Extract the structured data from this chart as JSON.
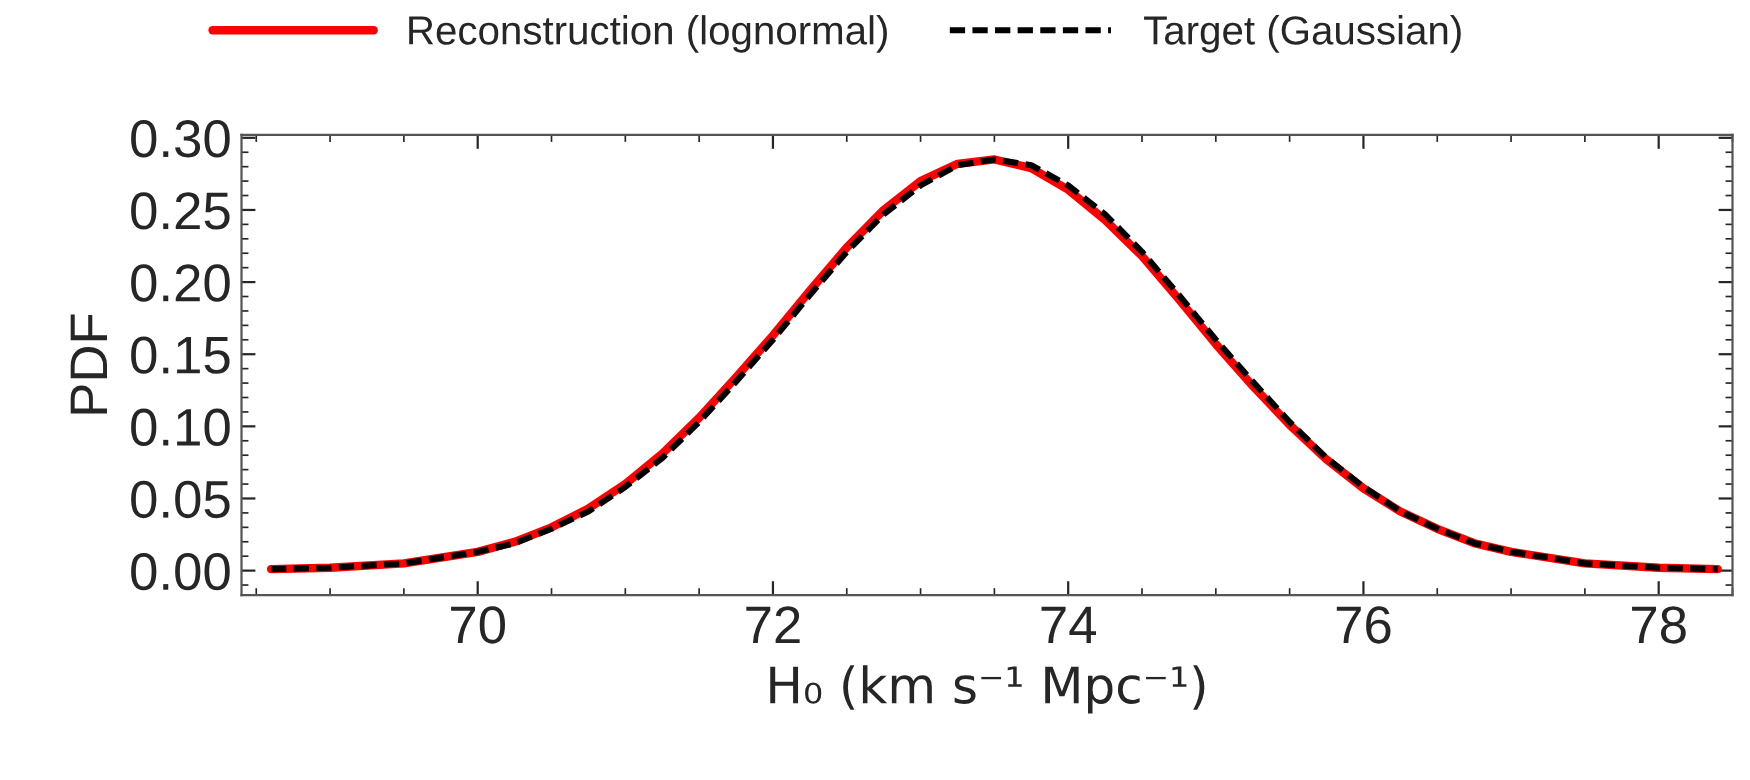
{
  "chart_data": {
    "type": "line",
    "xlabel": "H₀ (km s⁻¹ Mpc⁻¹)",
    "ylabel": "PDF",
    "xlim": [
      68.4,
      78.5
    ],
    "ylim": [
      -0.017,
      0.302
    ],
    "xticks": [
      70,
      72,
      74,
      76,
      78
    ],
    "yticks": [
      {
        "value": 0,
        "label": "0.00"
      },
      {
        "value": 0.05,
        "label": "0.05"
      },
      {
        "value": 0.1,
        "label": "0.10"
      },
      {
        "value": 0.15,
        "label": "0.15"
      },
      {
        "value": 0.2,
        "label": "0.20"
      },
      {
        "value": 0.25,
        "label": "0.25"
      },
      {
        "value": 0.3,
        "label": "0.30"
      }
    ],
    "x": [
      68.6,
      69,
      69.5,
      70,
      70.25,
      70.5,
      70.75,
      71,
      71.25,
      71.5,
      71.75,
      72,
      72.25,
      72.5,
      72.75,
      73,
      73.25,
      73.5,
      73.75,
      74,
      74.25,
      74.5,
      74.75,
      75,
      75.25,
      75.5,
      75.75,
      76,
      76.25,
      76.5,
      76.75,
      77,
      77.5,
      78,
      78.4
    ],
    "grid": false,
    "legend": "top",
    "marker": "none",
    "series": [
      {
        "name": "Reconstruction (lognormal)",
        "color": "#ff0000",
        "line_style": "solid",
        "values": [
          0.001,
          0.002,
          0.005,
          0.013,
          0.02,
          0.03,
          0.043,
          0.06,
          0.081,
          0.106,
          0.134,
          0.163,
          0.194,
          0.224,
          0.25,
          0.27,
          0.282,
          0.285,
          0.279,
          0.264,
          0.243,
          0.218,
          0.188,
          0.157,
          0.128,
          0.101,
          0.077,
          0.057,
          0.041,
          0.029,
          0.019,
          0.013,
          0.005,
          0.002,
          0.001
        ]
      },
      {
        "name": "Target (Gaussian)",
        "color": "#000000",
        "line_style": "dashed",
        "values": [
          0.001,
          0.002,
          0.005,
          0.013,
          0.019,
          0.029,
          0.041,
          0.058,
          0.078,
          0.103,
          0.131,
          0.16,
          0.191,
          0.221,
          0.247,
          0.267,
          0.281,
          0.285,
          0.281,
          0.267,
          0.247,
          0.221,
          0.191,
          0.16,
          0.131,
          0.103,
          0.078,
          0.058,
          0.041,
          0.029,
          0.019,
          0.013,
          0.005,
          0.002,
          0.001
        ]
      }
    ]
  }
}
